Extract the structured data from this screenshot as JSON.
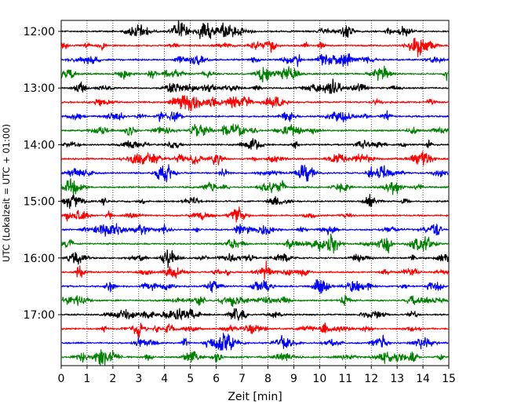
{
  "chart_data": {
    "type": "line",
    "title": "",
    "xlabel": "Zeit  [min]",
    "ylabel": "UTC (Lokalzeit = UTC + 01:00)",
    "xlim": [
      0,
      15
    ],
    "x_ticks": [
      0,
      1,
      2,
      3,
      4,
      5,
      6,
      7,
      8,
      9,
      10,
      11,
      12,
      13,
      14,
      15
    ],
    "y_tick_labels": [
      "12:00",
      "13:00",
      "14:00",
      "15:00",
      "16:00",
      "17:00"
    ],
    "trace_start": "12:00",
    "trace_interval_min": 15,
    "trace_count": 24,
    "trace_colors": [
      "#000000",
      "#ff0000",
      "#0000ff",
      "#008000"
    ],
    "grid": "vertical dotted at each minute",
    "legend": "none"
  }
}
